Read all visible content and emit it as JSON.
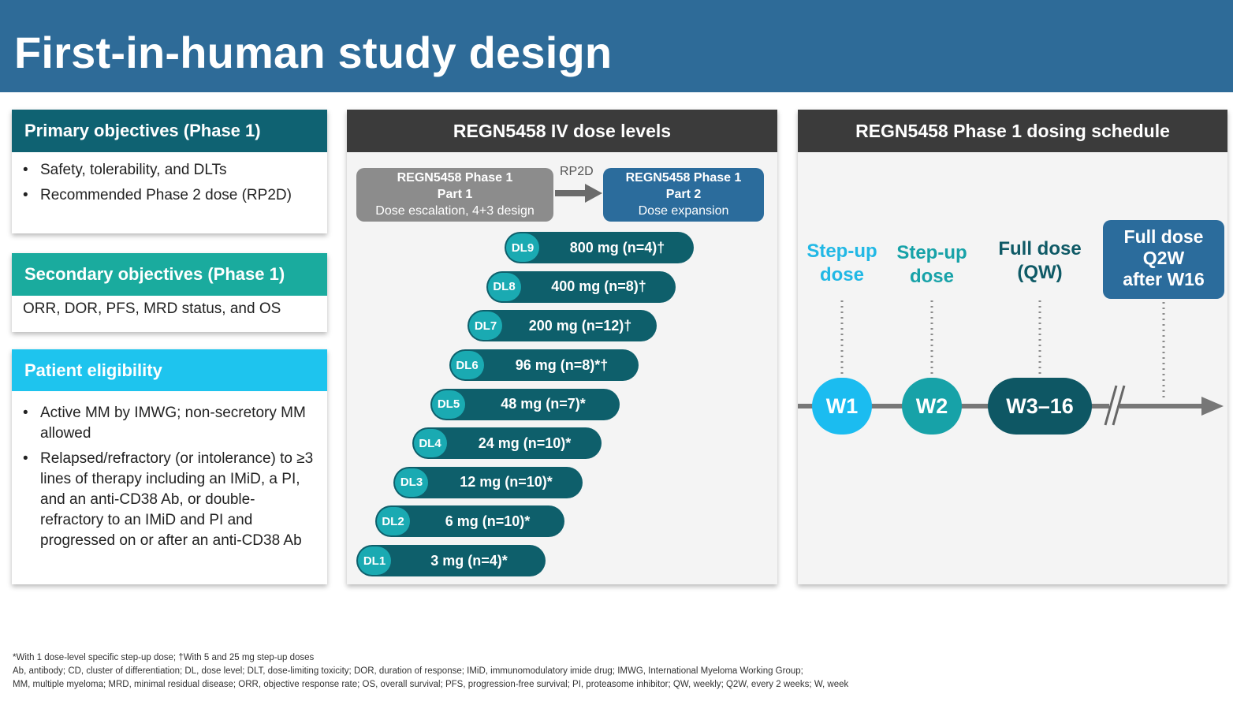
{
  "slide": {
    "title": "First-in-human study design"
  },
  "primary": {
    "heading": "Primary objectives (Phase 1)",
    "items": [
      "Safety, tolerability, and DLTs",
      "Recommended Phase 2 dose (RP2D)"
    ]
  },
  "secondary": {
    "heading": "Secondary objectives (Phase 1)",
    "text": "ORR, DOR, PFS, MRD status, and OS"
  },
  "eligibility": {
    "heading": "Patient eligibility",
    "items": [
      "Active MM by IMWG; non-secretory MM allowed",
      "Relapsed/refractory (or intolerance) to ≥3 lines of therapy including an IMiD, a PI, and an anti-CD38 Ab, or double-refractory to an IMiD and PI and progressed on or after an anti-CD38 Ab"
    ]
  },
  "dose_levels": {
    "heading": "REGN5458 IV dose levels",
    "part1": {
      "line1": "REGN5458 Phase 1",
      "line2": "Part 1",
      "line3": "Dose escalation, 4+3 design"
    },
    "arrow_label": "RP2D",
    "part2": {
      "line1": "REGN5458 Phase 1",
      "line2": "Part 2",
      "line3": "Dose expansion"
    },
    "levels": [
      {
        "dl": "DL9",
        "text": "800 mg (n=4)†"
      },
      {
        "dl": "DL8",
        "text": "400 mg (n=8)†"
      },
      {
        "dl": "DL7",
        "text": "200 mg (n=12)†"
      },
      {
        "dl": "DL6",
        "text": "96 mg (n=8)*†"
      },
      {
        "dl": "DL5",
        "text": "48 mg (n=7)*"
      },
      {
        "dl": "DL4",
        "text": "24 mg (n=10)*"
      },
      {
        "dl": "DL3",
        "text": "12 mg (n=10)*"
      },
      {
        "dl": "DL2",
        "text": "6 mg (n=10)*"
      },
      {
        "dl": "DL1",
        "text": "3 mg (n=4)*"
      }
    ]
  },
  "schedule": {
    "heading": "REGN5458 Phase 1 dosing schedule",
    "labels": [
      {
        "line1": "Step-up",
        "line2": "dose",
        "color": "#21b8e5"
      },
      {
        "line1": "Step-up",
        "line2": "dose",
        "color": "#17a2a8"
      },
      {
        "line1": "Full dose",
        "line2": "(QW)",
        "color": "#0f5a66"
      }
    ],
    "final_box": {
      "line1": "Full dose",
      "line2": "Q2W",
      "line3": "after W16"
    },
    "weeks": [
      {
        "label": "W1",
        "color": "#1bbcf0"
      },
      {
        "label": "W2",
        "color": "#17a2a8"
      },
      {
        "label": "W3–16",
        "color": "#0e5764"
      }
    ]
  },
  "footnotes": {
    "line1": "*With 1 dose-level specific step-up dose; †With 5 and 25 mg step-up doses",
    "line2": "Ab, antibody; CD, cluster of differentiation; DL, dose level; DLT, dose-limiting toxicity; DOR, duration of response; IMiD, immunomodulatory imide drug; IMWG, International Myeloma Working Group;",
    "line3": "MM, multiple myeloma; MRD, minimal residual disease; ORR, objective response rate; OS, overall survival; PFS, progression-free survival; PI, proteasome inhibitor; QW, weekly; Q2W, every 2 weeks; W, week"
  }
}
